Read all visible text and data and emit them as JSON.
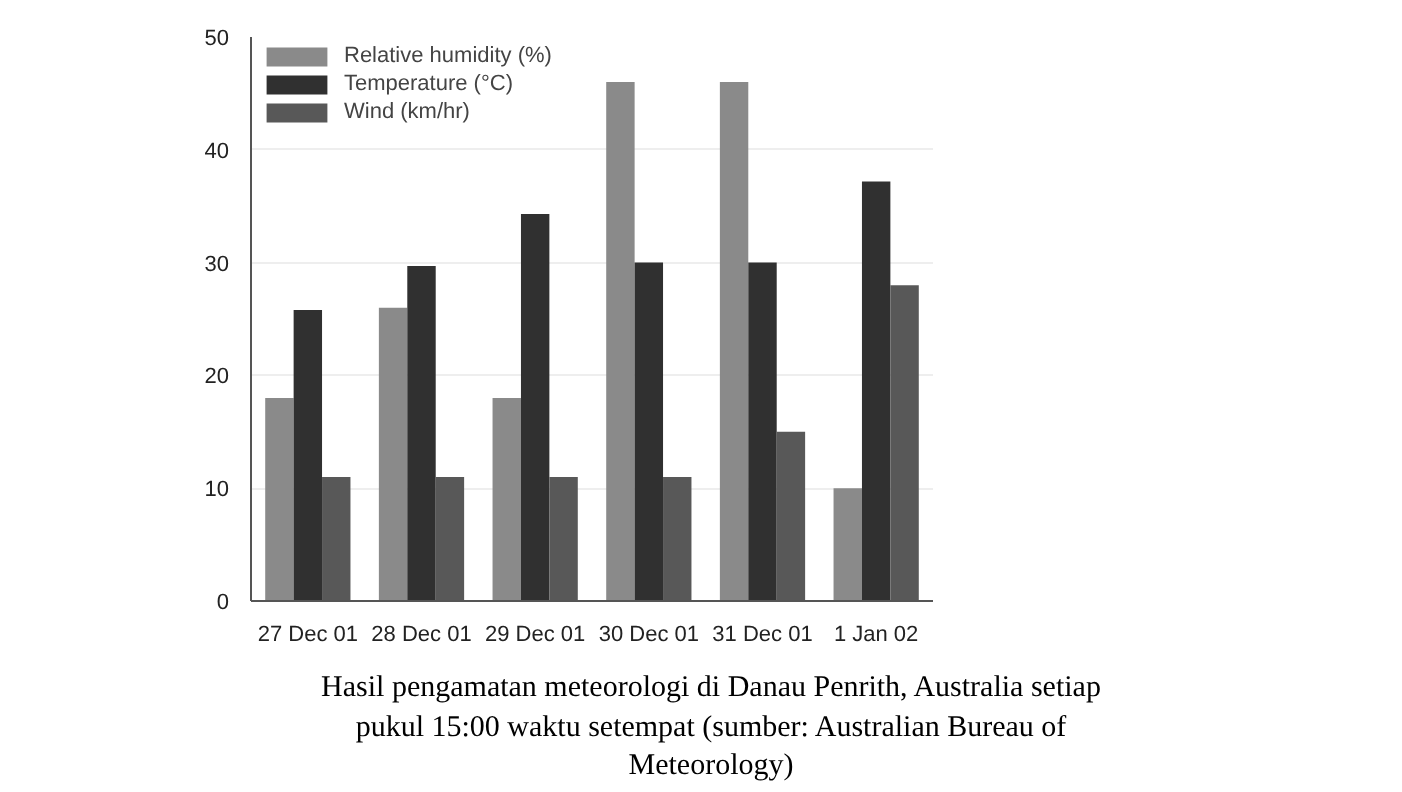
{
  "chart_data": {
    "type": "bar",
    "categories": [
      "27 Dec 01",
      "28 Dec 01",
      "29 Dec 01",
      "30 Dec 01",
      "31 Dec 01",
      "1 Jan 02"
    ],
    "series": [
      {
        "name": "Relative humidity (%)",
        "color": "#8a8a8a",
        "values": [
          18,
          26,
          18,
          46,
          46,
          10
        ]
      },
      {
        "name": "Temperature (°C)",
        "color": "#303030",
        "values": [
          25.8,
          29.7,
          34.3,
          30,
          30,
          37.2
        ]
      },
      {
        "name": "Wind (km/hr)",
        "color": "#585858",
        "values": [
          11,
          11,
          11,
          11,
          15,
          28
        ]
      }
    ],
    "ylim": [
      0,
      50
    ],
    "yticks": [
      0,
      10,
      20,
      30,
      40,
      50
    ],
    "grid": "y",
    "legend": "top left",
    "annotations": [
      "Hasil pengamatan meteorologi di Danau Penrith, Australia setiap pukul 15:00 waktu setempat (sumber: Australian Bureau of Meteorology)"
    ]
  }
}
